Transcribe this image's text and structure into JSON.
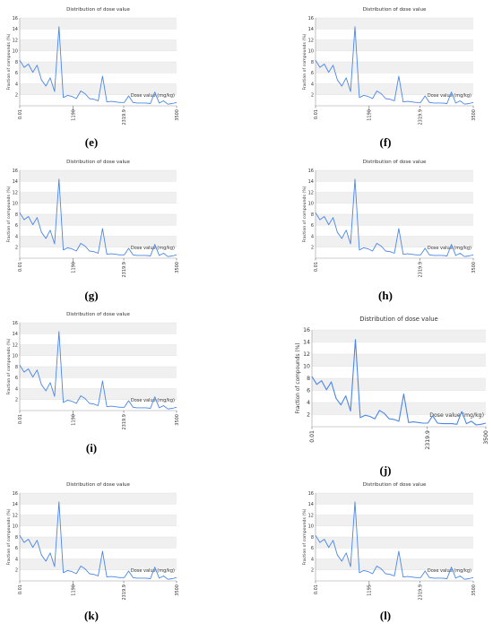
{
  "chart_data": [
    {
      "panel": "(e)",
      "type": "line",
      "title": "Distribution of dose value",
      "ylabel": "Fraction of compounds (%)",
      "xlabel": "Dose value (mg/kg)",
      "x_tick_labels": [
        "0.01",
        "1190",
        "2319.9",
        "3500"
      ],
      "x_range": [
        0.01,
        3500
      ],
      "ylim": [
        0,
        16
      ],
      "y_ticks": [
        2,
        4,
        6,
        8,
        10,
        12,
        14,
        16
      ],
      "grid": "horizontal bands"
    },
    {
      "panel": "(f)",
      "type": "line",
      "title": "Distribution of dose value",
      "ylabel": "Fraction of compounds (%)",
      "xlabel": "Dose value (mg/kg)",
      "x_tick_labels": [
        "0.01",
        "1190",
        "2319.9",
        "3500"
      ],
      "x_range": [
        0.01,
        3500
      ],
      "ylim": [
        0,
        16
      ],
      "y_ticks": [
        2,
        4,
        6,
        8,
        10,
        12,
        14,
        16
      ],
      "grid": "horizontal bands"
    },
    {
      "panel": "(g)",
      "type": "line",
      "title": "Distribution of dose value",
      "ylabel": "Fraction of compounds (%)",
      "xlabel": "Dose value (mg/kg)",
      "x_tick_labels": [
        "0.01",
        "1190",
        "2319.9",
        "3500"
      ],
      "x_range": [
        0.01,
        3500
      ],
      "ylim": [
        0,
        16
      ],
      "y_ticks": [
        2,
        4,
        6,
        8,
        10,
        12,
        14,
        16
      ],
      "grid": "horizontal bands"
    },
    {
      "panel": "(h)",
      "type": "line",
      "title": "Distribution of dose value",
      "ylabel": "Fraction of compounds (%)",
      "xlabel": "Dose value (mg/kg)",
      "x_tick_labels": [
        "0.01",
        "2319.9",
        "3500"
      ],
      "x_range": [
        0.01,
        3500
      ],
      "ylim": [
        0,
        16
      ],
      "y_ticks": [
        2,
        4,
        6,
        8,
        10,
        12,
        14,
        16
      ],
      "grid": "horizontal bands"
    },
    {
      "panel": "(i)",
      "type": "line",
      "title": "Distribution of dose value",
      "ylabel": "Fraction of compounds (%)",
      "xlabel": "Dose value (mg/kg)",
      "x_tick_labels": [
        "0.01",
        "1190",
        "2319.9",
        "3500"
      ],
      "x_range": [
        0.01,
        3500
      ],
      "ylim": [
        0,
        16
      ],
      "y_ticks": [
        2,
        4,
        6,
        8,
        10,
        12,
        14,
        16
      ],
      "grid": "horizontal bands"
    },
    {
      "panel": "(j)",
      "type": "line",
      "title": "Distribution of dose value",
      "ylabel": "Fraction of compounds (%)",
      "xlabel": "Dose value (mg/kg)",
      "x_tick_labels": [
        "0.01",
        "2319.9",
        "3500"
      ],
      "x_range": [
        0.01,
        3500
      ],
      "ylim": [
        0,
        16
      ],
      "y_ticks": [
        2,
        4,
        6,
        8,
        10,
        12,
        14,
        16
      ],
      "grid": "horizontal bands"
    },
    {
      "panel": "(k)",
      "type": "line",
      "title": "Distribution of dose value",
      "ylabel": "Fraction of compounds (%)",
      "xlabel": "Dose value (mg/kg)",
      "x_tick_labels": [
        "0.01",
        "1190",
        "2319.9",
        "3500"
      ],
      "x_range": [
        0.01,
        3500
      ],
      "ylim": [
        0,
        16
      ],
      "y_ticks": [
        2,
        4,
        6,
        8,
        10,
        12,
        14,
        16
      ],
      "grid": "horizontal bands"
    },
    {
      "panel": "(l)",
      "type": "line",
      "title": "Distribution of dose value",
      "ylabel": "Fraction of compounds (%)",
      "xlabel": "Dose value (mg/kg)",
      "x_tick_labels": [
        "0.01",
        "1195",
        "2319.9",
        "3500"
      ],
      "x_range": [
        0.01,
        3500
      ],
      "ylim": [
        0,
        16
      ],
      "y_ticks": [
        2,
        4,
        6,
        8,
        10,
        12,
        14,
        16
      ],
      "grid": "horizontal bands"
    }
  ],
  "series_values": [
    8.3,
    7.0,
    7.6,
    6.1,
    7.4,
    4.7,
    3.6,
    5.1,
    2.6,
    14.4,
    1.5,
    1.9,
    1.7,
    1.3,
    2.7,
    2.2,
    1.3,
    1.2,
    0.9,
    5.4,
    0.7,
    0.8,
    0.7,
    0.6,
    0.6,
    1.8,
    0.6,
    0.5,
    0.5,
    0.5,
    0.4,
    2.5,
    0.5,
    0.9,
    0.3,
    0.4,
    0.6
  ],
  "line_color": "#4a86e8"
}
